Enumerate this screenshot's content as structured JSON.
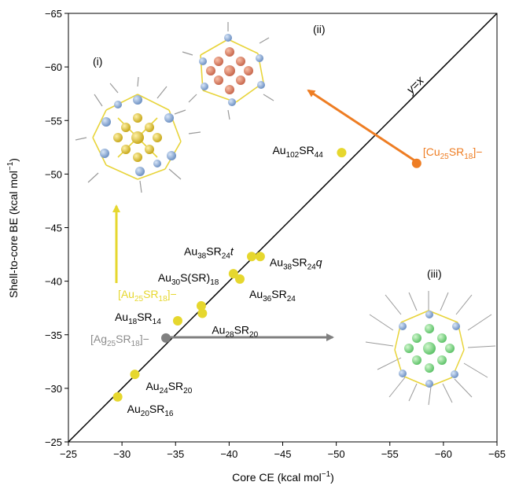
{
  "chart_data": {
    "type": "scatter",
    "xlabel": "Core CE (kcal mol⁻¹)",
    "ylabel": "Shell-to-core BE (kcal mol⁻¹)",
    "xlim": [
      -25,
      -65
    ],
    "ylim": [
      -25,
      -65
    ],
    "xticks": [
      "−25",
      "−30",
      "−35",
      "−40",
      "−45",
      "−50",
      "−55",
      "−60",
      "−65"
    ],
    "yticks": [
      "−25",
      "−30",
      "−35",
      "−40",
      "−45",
      "−50",
      "−55",
      "−60",
      "−65"
    ],
    "diagonal_label": "y=x",
    "colors": {
      "gold_points": "#e6d72e",
      "silver_point": "#808080",
      "copper_point": "#ee7d23",
      "au25_label": "#e6d72e",
      "ag25_label": "#8c8c8c",
      "cu25_label": "#ee7d23",
      "axis": "#000000"
    },
    "points": [
      {
        "label_base": "Au",
        "sub1": "20",
        "mid": "SR",
        "sub2": "16",
        "x": -29.6,
        "y": -29.2,
        "kind": "gold"
      },
      {
        "label_base": "Au",
        "sub1": "24",
        "mid": "SR",
        "sub2": "20",
        "x": -31.2,
        "y": -31.3,
        "kind": "gold"
      },
      {
        "label_base": "Au",
        "sub1": "18",
        "mid": "SR",
        "sub2": "14",
        "x": -35.2,
        "y": -36.3,
        "kind": "gold"
      },
      {
        "label_base": "Au",
        "sub1": "28",
        "mid": "SR",
        "sub2": "20",
        "x": -37.5,
        "y": -37.0,
        "kind": "gold"
      },
      {
        "label_base": "[Au",
        "sub1": "25",
        "mid": "SR",
        "sub2": "18",
        "tail": "]−",
        "x": -37.4,
        "y": -37.7,
        "kind": "gold"
      },
      {
        "label_base": "Au",
        "sub1": "30",
        "mid": "S(SR)",
        "sub2": "18",
        "x": -40.4,
        "y": -40.7,
        "kind": "gold"
      },
      {
        "label_base": "Au",
        "sub1": "36",
        "mid": "SR",
        "sub2": "24",
        "x": -41.0,
        "y": -40.2,
        "kind": "gold"
      },
      {
        "label_base": "Au",
        "sub1": "38",
        "mid": "SR",
        "sub2": "24",
        "tail": "t",
        "x": -42.1,
        "y": -42.3,
        "kind": "gold"
      },
      {
        "label_base": "Au",
        "sub1": "38",
        "mid": "SR",
        "sub2": "24",
        "tail": "q",
        "x": -42.9,
        "y": -42.3,
        "kind": "gold"
      },
      {
        "label_base": "Au",
        "sub1": "102",
        "mid": "SR",
        "sub2": "44",
        "x": -50.5,
        "y": -52.0,
        "kind": "gold"
      },
      {
        "label_base": "[Ag",
        "sub1": "25",
        "mid": "SR",
        "sub2": "18",
        "tail": "]−",
        "x": -34.1,
        "y": -34.7,
        "kind": "silver"
      },
      {
        "label_base": "[Cu",
        "sub1": "25",
        "mid": "SR",
        "sub2": "18",
        "tail": "]−",
        "x": -57.5,
        "y": -51.0,
        "kind": "copper"
      }
    ],
    "panel_labels": [
      "(i)",
      "(ii)",
      "(iii)"
    ],
    "grid": false,
    "legend": "none"
  }
}
